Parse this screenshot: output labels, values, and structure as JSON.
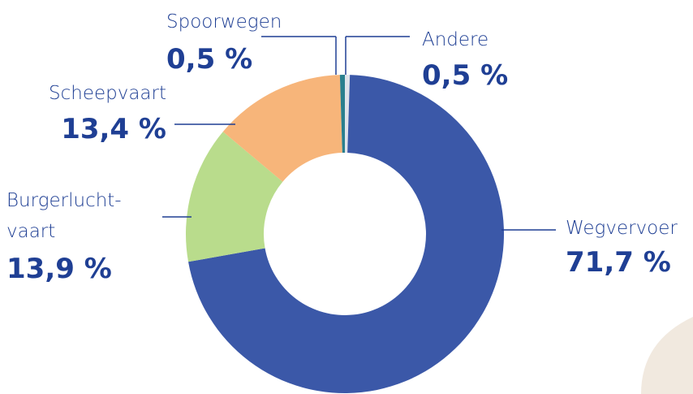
{
  "chart_data": {
    "type": "pie",
    "donut": true,
    "categories": [
      "Andere",
      "Wegvervoer",
      "Burgerlucht-\nvaart",
      "Scheepvaart",
      "Spoorwegen"
    ],
    "values": [
      0.5,
      71.7,
      13.9,
      13.4,
      0.5
    ],
    "value_labels": [
      "0,5 %",
      "71,7 %",
      "13,9 %",
      "13,4 %",
      "0,5 %"
    ],
    "colors": [
      "#dfe3ea",
      "#3b58a8",
      "#b9dc8c",
      "#f7b57a",
      "#2a7f8e"
    ]
  }
}
